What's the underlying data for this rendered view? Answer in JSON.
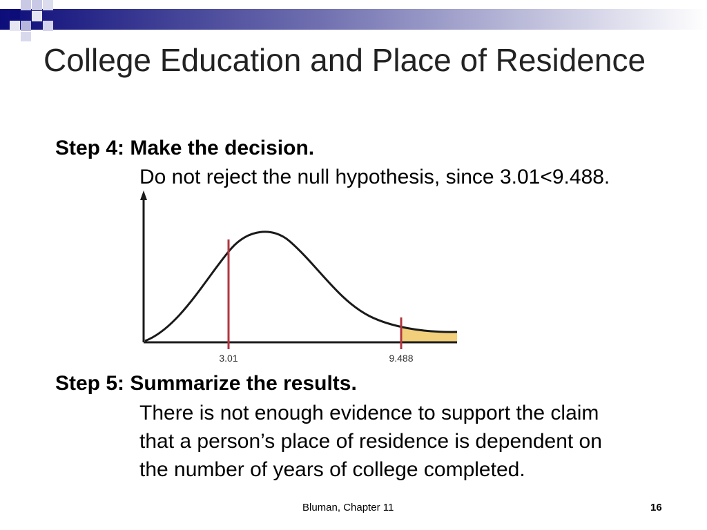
{
  "slide": {
    "title": "College Education and Place of Residence",
    "step4": {
      "heading": "Step 4: Make the decision.",
      "body": "Do not reject the null hypothesis, since 3.01<9.488."
    },
    "graph": {
      "tick_test_value": "3.01",
      "tick_critical_value": "9.488",
      "curve_color": "#1a1a1a",
      "marker_color": "#b2353f",
      "rejection_fill": "#f2cf7a"
    },
    "step5": {
      "heading": "Step 5: Summarize the results.",
      "body_line1": "There is not enough evidence to support the claim",
      "body_line2": "that a person’s place of residence is dependent on",
      "body_line3": "the number of years of college completed."
    },
    "footer": "Bluman, Chapter 11",
    "page_number": "16"
  }
}
